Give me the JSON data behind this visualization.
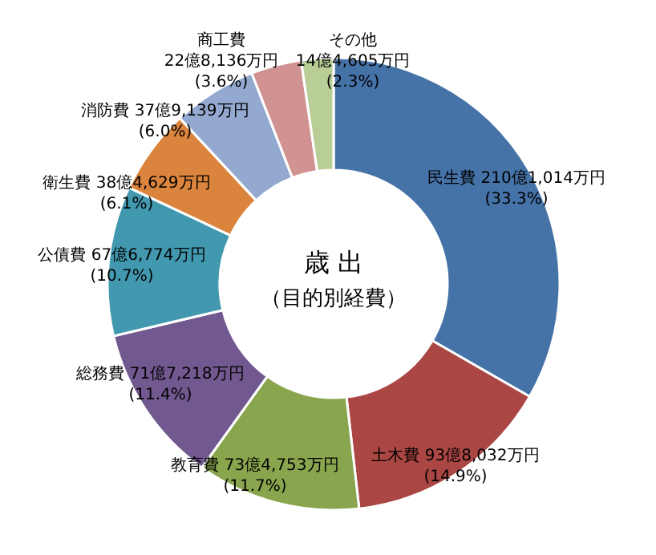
{
  "chart_data": {
    "type": "donut",
    "title": "歳 出",
    "subtitle": "（目的別経費）",
    "categories": [
      "民生費",
      "土木費",
      "教育費",
      "総務費",
      "公債費",
      "衛生費",
      "消防費",
      "商工費",
      "その他"
    ],
    "values": [
      33.3,
      14.9,
      11.7,
      11.4,
      10.7,
      6.1,
      6.0,
      3.6,
      2.3
    ],
    "colors": [
      "#4572a7",
      "#aa4643",
      "#89a54e",
      "#71588f",
      "#4198af",
      "#db843d",
      "#93a9cf",
      "#d19392",
      "#b9cd96"
    ],
    "value_labels": [
      "210億1,014万円\n(33.3%)",
      "93億8,032万円\n(14.9%)",
      "73億4,753万円\n(11.7%)",
      "71億7,218万円\n(11.4%)",
      "67億6,774万円\n(10.7%)",
      "38億4,629万円\n(6.1%)",
      "37億9,139万円\n(6.0%)",
      "22億8,136万円\n(3.6%)",
      "14億4,605万円\n(2.3%)"
    ]
  }
}
